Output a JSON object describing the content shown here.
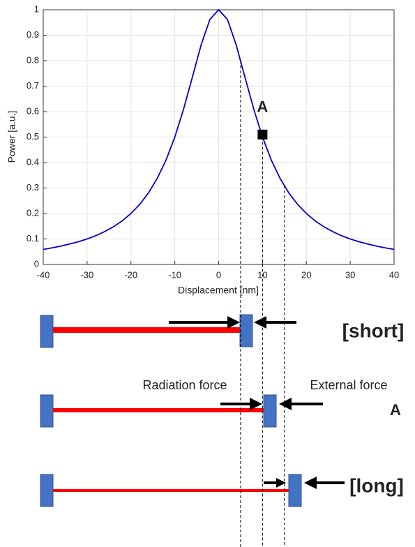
{
  "chart_data": {
    "type": "line",
    "ylabel": "Power [a.u.]",
    "xlabel": "Displacement [nm]",
    "x": [
      -40,
      -38,
      -36,
      -34,
      -32,
      -30,
      -28,
      -26,
      -24,
      -22,
      -20,
      -18,
      -16,
      -14,
      -12,
      -10,
      -8,
      -6,
      -4,
      -2,
      0,
      2,
      4,
      6,
      8,
      10,
      12,
      14,
      16,
      18,
      20,
      22,
      24,
      26,
      28,
      30,
      32,
      34,
      36,
      38,
      40
    ],
    "series": [
      {
        "color": "#0000cc",
        "values": [
          0.059,
          0.065,
          0.072,
          0.08,
          0.089,
          0.1,
          0.113,
          0.129,
          0.148,
          0.171,
          0.2,
          0.236,
          0.281,
          0.338,
          0.41,
          0.5,
          0.61,
          0.735,
          0.862,
          0.962,
          1,
          0.962,
          0.862,
          0.735,
          0.61,
          0.5,
          0.41,
          0.338,
          0.281,
          0.236,
          0.2,
          0.171,
          0.148,
          0.129,
          0.113,
          0.1,
          0.089,
          0.08,
          0.072,
          0.065,
          0.059
        ]
      }
    ],
    "point": {
      "label": "A",
      "x": 10,
      "y": 0.51
    },
    "reference_lines": [
      {
        "x": 5,
        "y": 0.8
      },
      {
        "x": 10,
        "y": 0.5
      },
      {
        "x": 15,
        "y": 0.31
      }
    ],
    "xlim": [
      -40,
      40
    ],
    "ylim": [
      0,
      1
    ],
    "xticks": [
      -40,
      -30,
      -20,
      -10,
      0,
      10,
      20,
      30,
      40
    ],
    "yticks": [
      0,
      0.1,
      0.2,
      0.3,
      0.4,
      0.5,
      0.6,
      0.7,
      0.8,
      0.9,
      1
    ],
    "grid": true
  },
  "diagram": {
    "short": "[short]",
    "radiation": "Radiation force",
    "external": "External force",
    "middle": "A",
    "long": "[long]"
  }
}
